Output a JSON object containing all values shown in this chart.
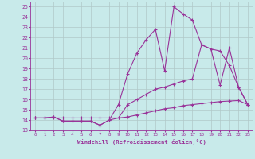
{
  "xlabel": "Windchill (Refroidissement éolien,°C)",
  "bg_color": "#c8eaea",
  "grid_color": "#b0c8c8",
  "line_color": "#993399",
  "xlim": [
    -0.5,
    23.5
  ],
  "ylim": [
    13,
    25.5
  ],
  "xticks": [
    0,
    1,
    2,
    3,
    4,
    5,
    6,
    7,
    8,
    9,
    10,
    11,
    12,
    13,
    14,
    15,
    16,
    17,
    18,
    19,
    20,
    21,
    22,
    23
  ],
  "yticks": [
    13,
    14,
    15,
    16,
    17,
    18,
    19,
    20,
    21,
    22,
    23,
    24,
    25
  ],
  "series1_x": [
    0,
    1,
    2,
    3,
    4,
    5,
    6,
    7,
    8,
    9,
    10,
    11,
    12,
    13,
    14,
    15,
    16,
    17,
    18,
    19,
    20,
    21,
    22,
    23
  ],
  "series1_y": [
    14.2,
    14.2,
    14.2,
    14.2,
    14.2,
    14.2,
    14.2,
    14.2,
    14.2,
    14.2,
    14.3,
    14.5,
    14.7,
    14.9,
    15.1,
    15.2,
    15.4,
    15.5,
    15.6,
    15.7,
    15.8,
    15.85,
    15.9,
    15.5
  ],
  "series2_x": [
    0,
    1,
    2,
    3,
    4,
    5,
    6,
    7,
    8,
    9,
    10,
    11,
    12,
    13,
    14,
    15,
    16,
    17,
    18,
    19,
    20,
    21,
    22,
    23
  ],
  "series2_y": [
    14.2,
    14.2,
    14.3,
    13.9,
    13.9,
    13.9,
    13.9,
    13.5,
    14.0,
    14.2,
    15.5,
    16.0,
    16.5,
    17.0,
    17.2,
    17.5,
    17.8,
    18.0,
    21.3,
    20.9,
    20.7,
    19.3,
    17.2,
    15.5
  ],
  "series3_x": [
    0,
    1,
    2,
    3,
    4,
    5,
    6,
    7,
    8,
    9,
    10,
    11,
    12,
    13,
    14,
    15,
    16,
    17,
    18,
    19,
    20,
    21,
    22,
    23
  ],
  "series3_y": [
    14.2,
    14.2,
    14.3,
    13.9,
    13.9,
    13.9,
    13.9,
    13.5,
    14.0,
    15.5,
    18.5,
    20.5,
    21.8,
    22.8,
    18.8,
    25.0,
    24.3,
    23.7,
    21.3,
    20.9,
    17.4,
    21.0,
    17.2,
    15.5
  ]
}
